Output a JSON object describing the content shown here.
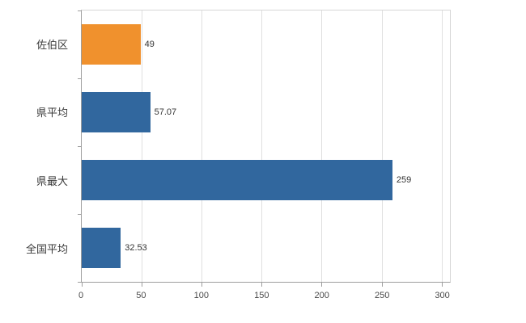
{
  "chart_data": {
    "type": "bar",
    "orientation": "horizontal",
    "title": "",
    "categories": [
      "佐伯区",
      "県平均",
      "県最大",
      "全国平均"
    ],
    "values": [
      49,
      57.07,
      259,
      32.53
    ],
    "value_labels": [
      "49",
      "57.07",
      "259",
      "32.53"
    ],
    "bar_colors": [
      "#f0912d",
      "#31679e",
      "#31679e",
      "#31679e"
    ],
    "x_ticks": [
      0,
      50,
      100,
      150,
      200,
      250,
      300
    ],
    "xlim": [
      0,
      307
    ],
    "grid": true,
    "legend": "none",
    "colors": {
      "grid": "#e0e0e0",
      "axis": "#9e9e9e",
      "text": "#3a3a3a"
    }
  }
}
